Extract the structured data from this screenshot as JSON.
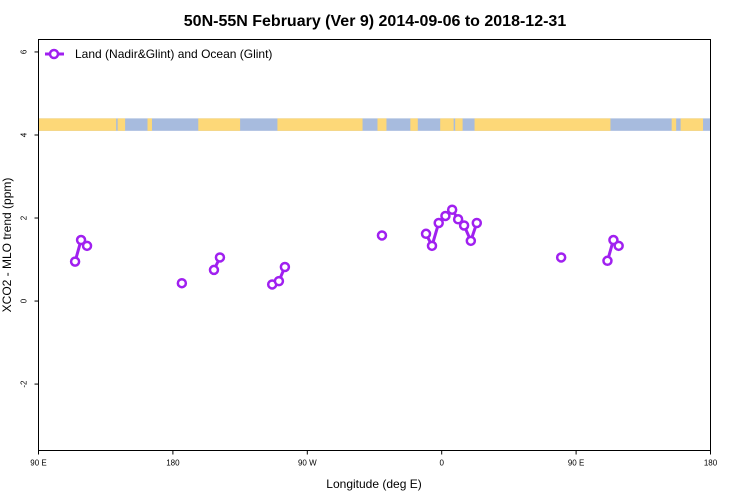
{
  "chart_data": {
    "type": "line",
    "title": "50N-55N February (Ver 9)   2014-09-06 to 2018-12-31",
    "xlabel": "Longitude (deg E)",
    "ylabel": "XCO2 - MLO trend (ppm)",
    "x_ticks": [
      {
        "value": 90,
        "label": "90 E"
      },
      {
        "value": 180,
        "label": "180"
      },
      {
        "value": 270,
        "label": "90 W"
      },
      {
        "value": 360,
        "label": "0"
      },
      {
        "value": 450,
        "label": "90 E"
      },
      {
        "value": 540,
        "label": "180"
      }
    ],
    "y_ticks": [
      {
        "value": -2,
        "label": "-2"
      },
      {
        "value": 0,
        "label": "0"
      },
      {
        "value": 2,
        "label": "2"
      },
      {
        "value": 4,
        "label": "4"
      },
      {
        "value": 6,
        "label": "6"
      }
    ],
    "xlim": [
      90,
      540
    ],
    "ylim": [
      -3.6,
      6.3
    ],
    "grid": false,
    "legend_position": "top-left",
    "land_ocean_band": {
      "y_range": [
        4.1,
        4.4
      ],
      "land_color": "#FDD878",
      "ocean_color": "#A7BBDE",
      "land_intervals": [
        [
          90,
          142
        ],
        [
          143,
          148
        ],
        [
          163,
          166
        ],
        [
          197,
          225
        ],
        [
          250,
          307
        ],
        [
          317,
          323
        ],
        [
          339,
          344
        ],
        [
          359,
          368
        ],
        [
          369,
          374
        ],
        [
          382,
          473
        ],
        [
          514,
          517
        ],
        [
          520,
          535
        ]
      ]
    },
    "series": [
      {
        "name": "Land (Nadir&Glint) and Ocean (Glint)",
        "color": "#A020F0",
        "segments": [
          [
            [
              114.5,
              0.95
            ],
            [
              118.5,
              1.47
            ],
            [
              122.5,
              1.33
            ]
          ],
          [
            [
              186,
              0.43
            ]
          ],
          [
            [
              207.5,
              0.75
            ],
            [
              211.5,
              1.05
            ]
          ],
          [
            [
              246.5,
              0.4
            ],
            [
              251,
              0.48
            ],
            [
              255,
              0.82
            ]
          ],
          [
            [
              320,
              1.58
            ]
          ],
          [
            [
              349.5,
              1.62
            ],
            [
              353.5,
              1.33
            ],
            [
              358,
              1.88
            ],
            [
              362.5,
              2.05
            ],
            [
              367,
              2.2
            ],
            [
              371,
              1.97
            ],
            [
              375,
              1.82
            ],
            [
              379.5,
              1.45
            ],
            [
              383.5,
              1.88
            ]
          ],
          [
            [
              440,
              1.05
            ]
          ],
          [
            [
              471,
              0.97
            ],
            [
              475,
              1.47
            ],
            [
              478.5,
              1.33
            ]
          ]
        ]
      }
    ]
  }
}
